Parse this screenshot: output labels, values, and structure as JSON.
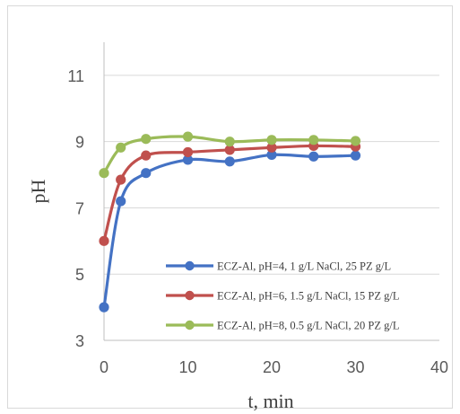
{
  "chart_data": {
    "type": "line",
    "title": "",
    "xlabel": "t, min",
    "ylabel": "pH",
    "xlim": [
      0,
      40
    ],
    "ylim": [
      3,
      12
    ],
    "x_ticks": [
      0,
      10,
      20,
      30,
      40
    ],
    "y_ticks": [
      3,
      5,
      7,
      9,
      11
    ],
    "grid": "horizontal",
    "legend_position": "bottom-right",
    "series": [
      {
        "name": "ECZ-Al, pH=4, 1 g/L NaCl, 25 PZ g/L",
        "color": "#4472c4",
        "x": [
          0,
          2,
          5,
          10,
          15,
          20,
          25,
          30
        ],
        "y": [
          4.0,
          7.2,
          8.05,
          8.45,
          8.4,
          8.6,
          8.55,
          8.58
        ]
      },
      {
        "name": "ECZ-Al, pH=6, 1.5 g/L NaCl, 15 PZ g/L",
        "color": "#c0504d",
        "x": [
          0,
          2,
          5,
          10,
          15,
          20,
          25,
          30
        ],
        "y": [
          6.0,
          7.85,
          8.58,
          8.68,
          8.75,
          8.82,
          8.87,
          8.85
        ]
      },
      {
        "name": "ECZ-Al, pH=8, 0.5 g/L NaCl, 20 PZ g/L",
        "color": "#9bbb59",
        "x": [
          0,
          2,
          5,
          10,
          15,
          20,
          25,
          30
        ],
        "y": [
          8.05,
          8.82,
          9.08,
          9.15,
          9.0,
          9.05,
          9.05,
          9.02
        ]
      }
    ]
  }
}
